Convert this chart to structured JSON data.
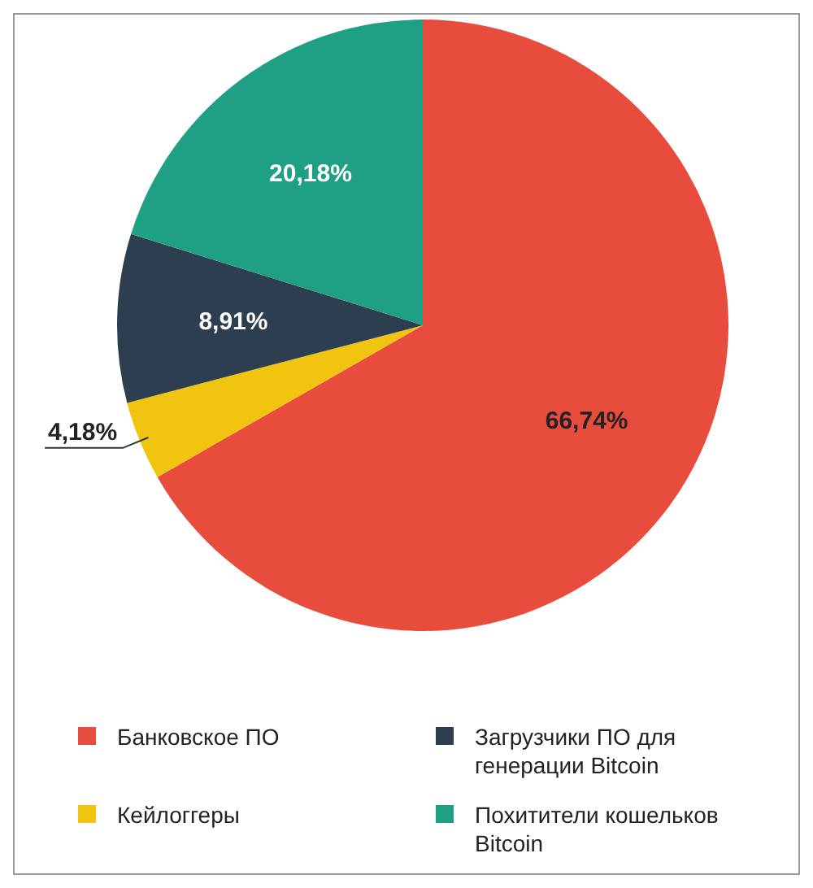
{
  "chart_data": {
    "type": "pie",
    "categories": [
      "Банковское ПО",
      "Кейлоггеры",
      "Загрузчики ПО для генерации Bitcoin",
      "Похитители кошельков Bitcoin"
    ],
    "values": [
      66.74,
      4.18,
      8.91,
      20.18
    ],
    "colors": [
      "#e84c3d",
      "#f1c40f",
      "#2c3e50",
      "#1fa085"
    ],
    "value_labels": [
      "66,74%",
      "4,18%",
      "8,91%",
      "20,18%"
    ],
    "legend": "bottom"
  }
}
